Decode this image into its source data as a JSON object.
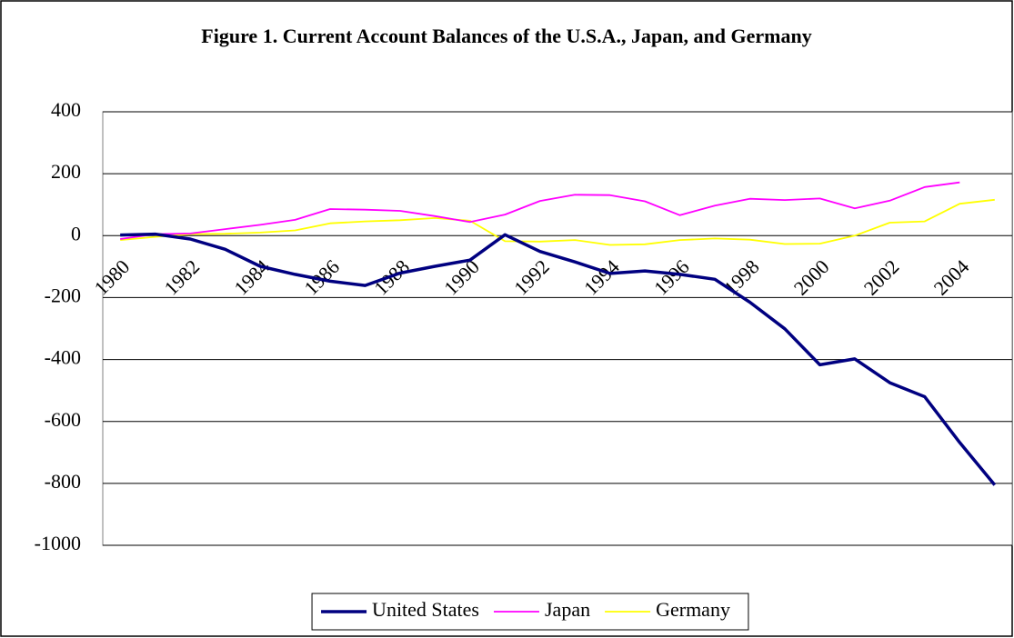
{
  "chart_data": {
    "type": "line",
    "title": "Figure 1. Current Account Balances of the U.S.A., Japan, and Germany",
    "categories": [
      "1980",
      null,
      "1982",
      null,
      "1984",
      null,
      "1986",
      null,
      "1988",
      null,
      "1990",
      null,
      "1992",
      null,
      "1994",
      null,
      "1996",
      null,
      "1998",
      null,
      "2000",
      null,
      "2002",
      null,
      "2004",
      null
    ],
    "series": [
      {
        "name": "United States",
        "color": "#000080",
        "values": [
          2,
          5,
          -11,
          -44,
          -99,
          -125,
          -147,
          -161,
          -121,
          -99,
          -79,
          3,
          -51,
          -85,
          -122,
          -114,
          -125,
          -141,
          -215,
          -301,
          -417,
          -398,
          -475,
          -520,
          -668,
          -805
        ]
      },
      {
        "name": "Japan",
        "color": "#ff00ff",
        "values": [
          -11,
          5,
          7,
          21,
          35,
          51,
          86,
          84,
          80,
          63,
          44,
          68,
          112,
          132,
          131,
          111,
          66,
          97,
          119,
          115,
          120,
          88,
          113,
          157,
          172,
          null
        ]
      },
      {
        "name": "Germany",
        "color": "#ffff00",
        "values": [
          -14,
          -4,
          5,
          6,
          10,
          17,
          40,
          46,
          50,
          57,
          48,
          -18,
          -19,
          -14,
          -30,
          -28,
          -14,
          -9,
          -13,
          -27,
          -26,
          0,
          42,
          46,
          103,
          116
        ]
      }
    ],
    "ylim": [
      -1000,
      400
    ],
    "yticks": [
      -1000,
      -800,
      -600,
      -400,
      -200,
      0,
      200,
      400
    ],
    "grid": true,
    "legend": "bottom"
  }
}
